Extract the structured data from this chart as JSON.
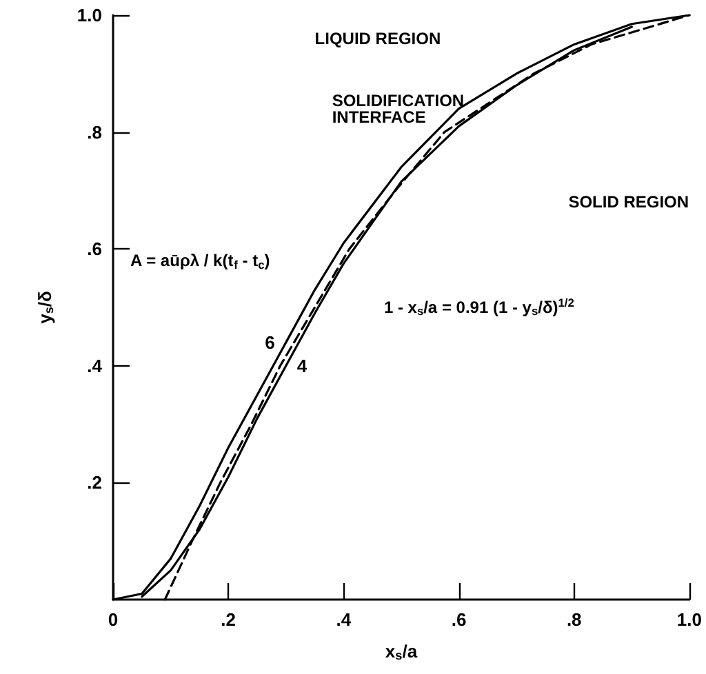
{
  "chart_data": {
    "type": "line",
    "xlabel": "x$_{s}$/a",
    "ylabel": "y$_{s}$/δ",
    "xlim": [
      0,
      1.0
    ],
    "ylim": [
      0,
      1.0
    ],
    "xticks": [
      0,
      {
        "value": 0.2,
        "label": ".2"
      },
      {
        "value": 0.4,
        "label": ".4"
      },
      {
        "value": 0.6,
        "label": ".6"
      },
      {
        "value": 0.8,
        "label": ".8"
      },
      {
        "value": 1.0,
        "label": "1.0"
      }
    ],
    "yticks": [
      {
        "value": 0.2,
        "label": ".2"
      },
      {
        "value": 0.4,
        "label": ".4"
      },
      {
        "value": 0.6,
        "label": ".6"
      },
      {
        "value": 0.8,
        "label": ".8"
      },
      {
        "value": 1.0,
        "label": "1.0"
      }
    ],
    "grid": false,
    "legend": false,
    "marker": "none",
    "series": [
      {
        "name": "6",
        "color": "#000000",
        "line_style": "solid",
        "x": [
          0,
          0.05,
          0.1,
          0.15,
          0.2,
          0.25,
          0.3,
          0.35,
          0.4,
          0.5,
          0.6,
          0.7,
          0.8,
          0.9,
          1.0
        ],
        "values": [
          0,
          0.01,
          0.07,
          0.16,
          0.26,
          0.35,
          0.44,
          0.53,
          0.61,
          0.74,
          0.84,
          0.9,
          0.95,
          0.985,
          1.0
        ]
      },
      {
        "name": "4",
        "color": "#000000",
        "line_style": "solid",
        "x": [
          0.05,
          0.1,
          0.15,
          0.2,
          0.25,
          0.3,
          0.35,
          0.4,
          0.5,
          0.6,
          0.7,
          0.8,
          0.9
        ],
        "values": [
          0.005,
          0.05,
          0.12,
          0.21,
          0.31,
          0.4,
          0.49,
          0.575,
          0.715,
          0.81,
          0.88,
          0.94,
          0.98
        ]
      },
      {
        "color": "#000000",
        "line_style": "dashed",
        "x": [
          0.09,
          0.137,
          0.186,
          0.24,
          0.29,
          0.35,
          0.41,
          0.49,
          0.575,
          0.73,
          0.83,
          1.0
        ],
        "values": [
          0,
          0.1,
          0.2,
          0.3,
          0.4,
          0.5,
          0.6,
          0.7,
          0.8,
          0.9,
          0.95,
          1.0
        ]
      }
    ],
    "annotations": [
      "LIQUID REGION",
      "SOLIDIFICATION INTERFACE",
      "SOLID REGION",
      "A = aūρλ / k(t$_{f}$ - t$_{c}$)",
      "1 - x$_{s}$/a = 0.91 (1 - y$_{s}$/δ)$^{1/2}$"
    ]
  }
}
